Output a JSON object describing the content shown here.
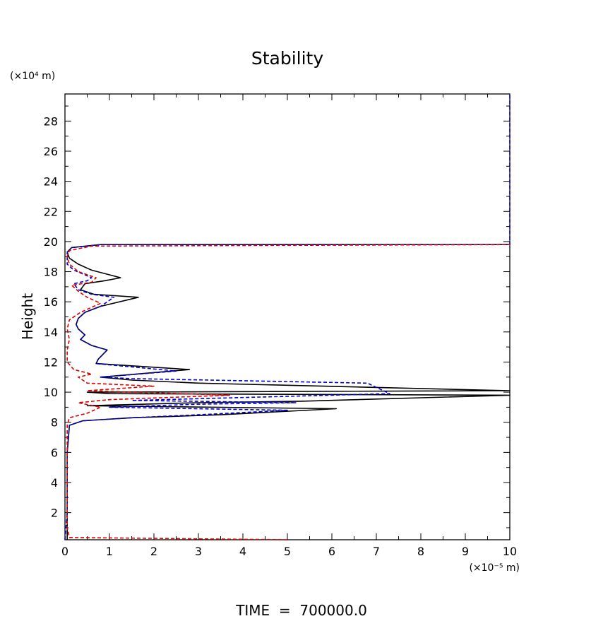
{
  "chart_data": {
    "type": "line",
    "title": "Stability",
    "xlabel": "",
    "ylabel": "Height",
    "x_unit": "(×10⁻⁵ m)",
    "y_unit": "(×10⁴ m)",
    "xlim": [
      0,
      10
    ],
    "ylim": [
      0.2,
      29.8
    ],
    "x_ticks": [
      0,
      1,
      2,
      3,
      4,
      5,
      6,
      7,
      8,
      9,
      10
    ],
    "y_ticks": [
      2,
      4,
      6,
      8,
      10,
      12,
      14,
      16,
      18,
      20,
      22,
      24,
      26,
      28
    ],
    "grid": false,
    "footer": "TIME  =  700000.0",
    "series": [
      {
        "color": "#000000",
        "style": "solid",
        "points": [
          [
            0.05,
            0.2
          ],
          [
            0.05,
            2
          ],
          [
            0.05,
            4
          ],
          [
            0.05,
            6
          ],
          [
            0.08,
            7
          ],
          [
            0.1,
            7.8
          ],
          [
            0.4,
            8.1
          ],
          [
            1.5,
            8.3
          ],
          [
            3.5,
            8.5
          ],
          [
            6.1,
            8.9
          ],
          [
            0.5,
            9.1
          ],
          [
            3,
            9.3
          ],
          [
            5.3,
            9.4
          ],
          [
            10,
            9.8
          ],
          [
            1,
            9.9
          ],
          [
            0.5,
            10.0
          ],
          [
            10,
            10.1
          ],
          [
            3,
            10.6
          ],
          [
            1.5,
            10.8
          ],
          [
            0.8,
            11.0
          ],
          [
            2.8,
            11.5
          ],
          [
            0.7,
            11.9
          ],
          [
            0.75,
            12.2
          ],
          [
            0.95,
            12.8
          ],
          [
            0.6,
            13.1
          ],
          [
            0.35,
            13.5
          ],
          [
            0.45,
            13.8
          ],
          [
            0.3,
            14.2
          ],
          [
            0.25,
            14.5
          ],
          [
            0.3,
            14.9
          ],
          [
            0.45,
            15.3
          ],
          [
            0.8,
            15.7
          ],
          [
            1.65,
            16.3
          ],
          [
            0.65,
            16.5
          ],
          [
            0.35,
            16.8
          ],
          [
            0.45,
            17.2
          ],
          [
            0.9,
            17.4
          ],
          [
            1.25,
            17.6
          ],
          [
            0.6,
            18.1
          ],
          [
            0.3,
            18.5
          ],
          [
            0.1,
            18.9
          ],
          [
            0.05,
            19.3
          ],
          [
            0.15,
            19.6
          ],
          [
            0.8,
            19.8
          ],
          [
            10,
            19.8
          ]
        ]
      },
      {
        "color": "#0000cc",
        "style": "dashed",
        "points": [
          [
            0,
            0.2
          ],
          [
            0.05,
            2
          ],
          [
            0.05,
            4
          ],
          [
            0.05,
            6
          ],
          [
            0.08,
            7
          ],
          [
            0.1,
            7.8
          ],
          [
            0.4,
            8.1
          ],
          [
            1.5,
            8.3
          ],
          [
            3,
            8.5
          ],
          [
            5,
            8.8
          ],
          [
            1,
            9.0
          ],
          [
            3,
            9.2
          ],
          [
            5.2,
            9.3
          ],
          [
            1.5,
            9.45
          ],
          [
            7.3,
            9.9
          ],
          [
            6.8,
            10.6
          ],
          [
            1.5,
            10.9
          ],
          [
            0.8,
            11.0
          ],
          [
            2.5,
            11.4
          ],
          [
            0.7,
            11.9
          ],
          [
            0.75,
            12.2
          ],
          [
            0.95,
            12.8
          ],
          [
            0.6,
            13.1
          ],
          [
            0.35,
            13.5
          ],
          [
            0.45,
            13.8
          ],
          [
            0.3,
            14.2
          ],
          [
            0.25,
            14.5
          ],
          [
            0.3,
            14.9
          ],
          [
            0.45,
            15.3
          ],
          [
            0.8,
            15.7
          ],
          [
            1.1,
            16.3
          ],
          [
            0.6,
            16.5
          ],
          [
            0.3,
            16.8
          ],
          [
            0.2,
            17.2
          ],
          [
            0.5,
            17.4
          ],
          [
            0.6,
            17.6
          ],
          [
            0.2,
            18.1
          ],
          [
            0.05,
            18.5
          ],
          [
            0.05,
            18.9
          ],
          [
            0.05,
            19.3
          ],
          [
            0.15,
            19.6
          ],
          [
            0.8,
            19.8
          ],
          [
            10,
            19.8
          ],
          [
            10,
            30
          ]
        ]
      },
      {
        "color": "#dd0000",
        "style": "dashed",
        "points": [
          [
            5,
            0.2
          ],
          [
            0.1,
            0.35
          ],
          [
            0.05,
            1
          ],
          [
            0.05,
            4
          ],
          [
            0.05,
            6
          ],
          [
            0.05,
            7.8
          ],
          [
            0.1,
            8.3
          ],
          [
            0.5,
            8.6
          ],
          [
            0.8,
            9.0
          ],
          [
            0.3,
            9.3
          ],
          [
            1,
            9.5
          ],
          [
            3.7,
            9.8
          ],
          [
            0.5,
            10.1
          ],
          [
            2,
            10.4
          ],
          [
            0.5,
            10.6
          ],
          [
            0.3,
            11.0
          ],
          [
            0.6,
            11.2
          ],
          [
            0.2,
            11.5
          ],
          [
            0.05,
            12
          ],
          [
            0.05,
            12.8
          ],
          [
            0.1,
            13.5
          ],
          [
            0.05,
            14.2
          ],
          [
            0.1,
            14.8
          ],
          [
            0.35,
            15.3
          ],
          [
            0.8,
            15.9
          ],
          [
            0.5,
            16.3
          ],
          [
            0.3,
            16.7
          ],
          [
            0.15,
            17.1
          ],
          [
            0.6,
            17.3
          ],
          [
            0.7,
            17.6
          ],
          [
            0.3,
            18.0
          ],
          [
            0.1,
            18.5
          ],
          [
            0.05,
            19.0
          ],
          [
            0.1,
            19.4
          ],
          [
            0.6,
            19.7
          ],
          [
            10,
            19.8
          ]
        ]
      }
    ]
  }
}
